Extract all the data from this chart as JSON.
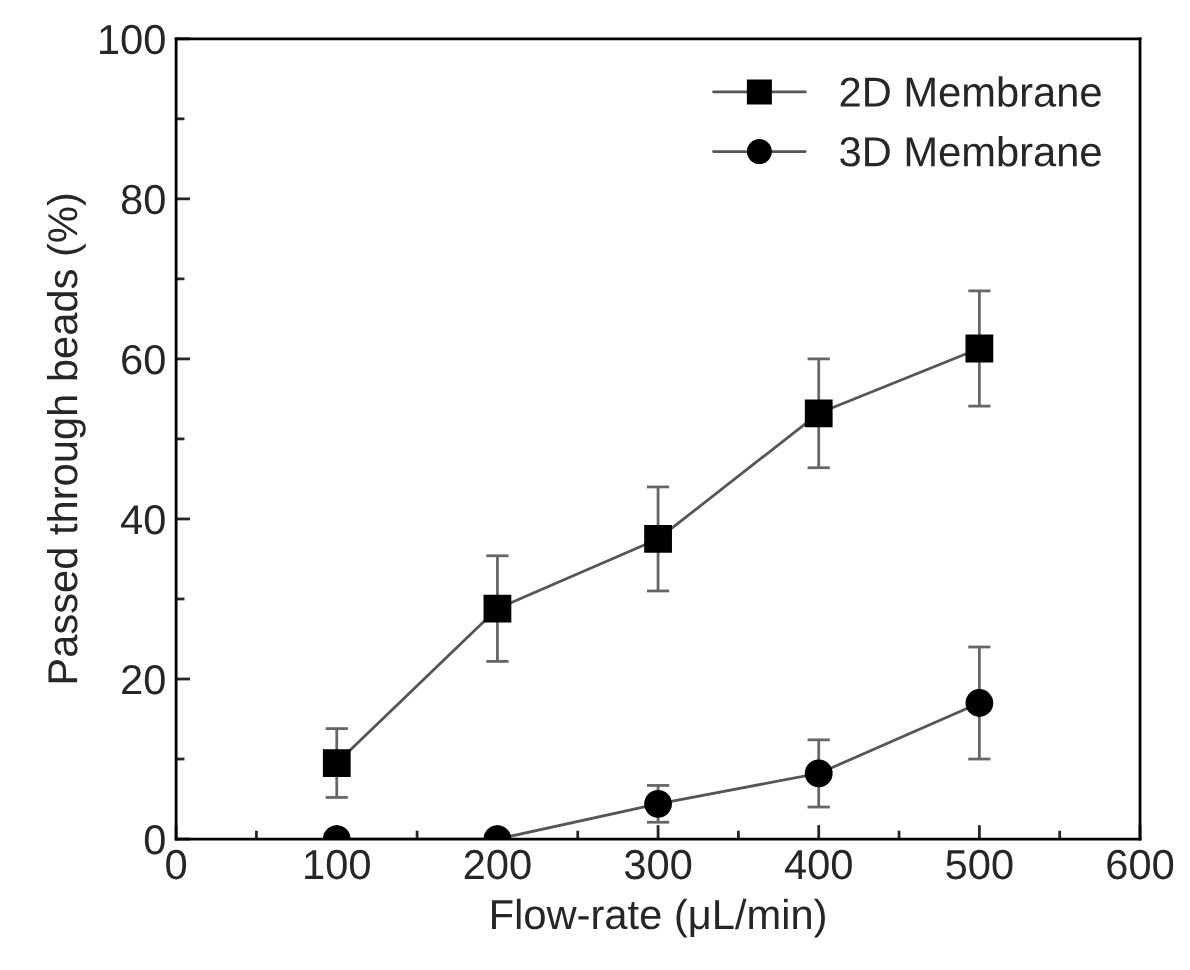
{
  "chart_data": {
    "type": "line",
    "xlabel": "Flow-rate (μL/min)",
    "ylabel": "Passed through beads (%)",
    "x": [
      100,
      200,
      300,
      400,
      500
    ],
    "series": [
      {
        "name": "2D Membrane",
        "color": "#000000",
        "marker": "square",
        "values": [
          9.5,
          28.8,
          37.5,
          53.2,
          61.3
        ],
        "errors": [
          4.3,
          6.6,
          6.5,
          6.8,
          7.2
        ]
      },
      {
        "name": "3D Membrane",
        "color": "#000000",
        "marker": "circle",
        "values": [
          0,
          0,
          4.4,
          8.2,
          17
        ],
        "errors": [
          null,
          null,
          2.3,
          4.2,
          7
        ]
      }
    ],
    "xlim": [
      0,
      600
    ],
    "xticks": [
      0,
      100,
      200,
      300,
      400,
      500,
      600
    ],
    "ylim": [
      0,
      100
    ],
    "yticks": [
      0,
      20,
      40,
      60,
      80,
      100
    ],
    "grid": false,
    "legend": "top right",
    "line_style": "solid"
  }
}
